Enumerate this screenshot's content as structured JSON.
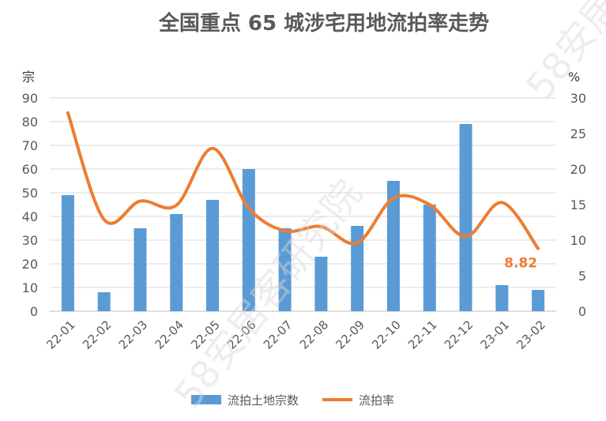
{
  "chart_data": {
    "type": "bar+line",
    "title": "全国重点 65 城涉宅用地流拍率走势",
    "categories": [
      "22-01",
      "22-02",
      "22-03",
      "22-04",
      "22-05",
      "22-06",
      "22-07",
      "22-08",
      "22-09",
      "22-10",
      "22-11",
      "22-12",
      "23-01",
      "23-02"
    ],
    "left_axis": {
      "unit": "宗",
      "ylim": [
        0,
        90
      ],
      "ticks": [
        0,
        10,
        20,
        30,
        40,
        50,
        60,
        70,
        80,
        90
      ]
    },
    "right_axis": {
      "unit": "%",
      "ylim": [
        0,
        30
      ],
      "ticks": [
        0,
        5,
        10,
        15,
        20,
        25,
        30
      ]
    },
    "series": [
      {
        "name": "流拍土地宗数",
        "type": "bar",
        "axis": "left",
        "color": "#5B9BD5",
        "values": [
          49,
          8,
          35,
          41,
          47,
          60,
          35,
          23,
          36,
          55,
          45,
          79,
          11,
          9
        ]
      },
      {
        "name": "流拍率",
        "type": "line",
        "axis": "right",
        "color": "#ED7D31",
        "values": [
          27.9,
          12.9,
          15.5,
          14.9,
          22.9,
          14.5,
          11.3,
          11.9,
          9.6,
          15.9,
          15.0,
          10.5,
          15.3,
          8.82
        ]
      }
    ],
    "annotation": {
      "text": "8.82",
      "color": "#ED7D31"
    },
    "grid": true,
    "legend": "bottom"
  },
  "watermark": {
    "text_a": "58安居客研究院",
    "text_b": "58安居"
  }
}
